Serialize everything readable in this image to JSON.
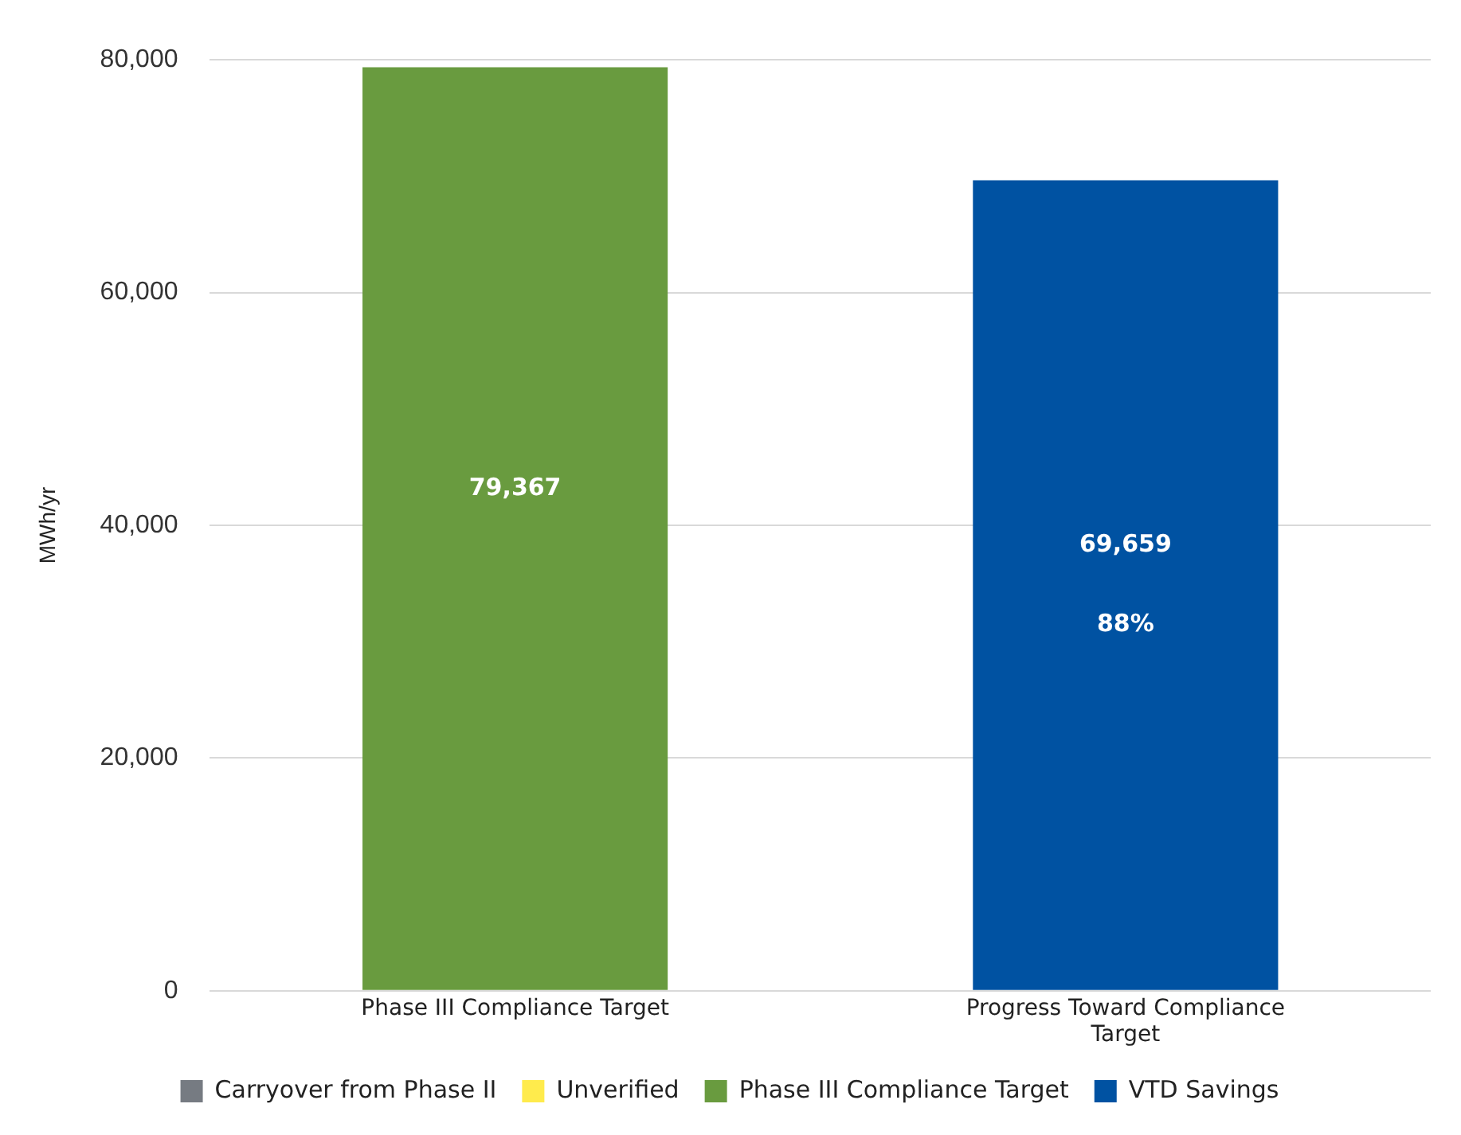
{
  "chart_data": {
    "type": "bar",
    "stacked": true,
    "ylabel": "MWh/yr",
    "categories": [
      "Phase III Compliance Target",
      "Progress Toward Compliance Target"
    ],
    "series": [
      {
        "name": "Carryover from Phase II",
        "color": "#767b82",
        "values": [
          null,
          null
        ]
      },
      {
        "name": "Unverified",
        "color": "#ffeb4c",
        "values": [
          null,
          null
        ]
      },
      {
        "name": "Phase III Compliance Target",
        "color": "#699b3f",
        "values": [
          79367,
          null
        ],
        "value_labels": [
          "79,367",
          null
        ]
      },
      {
        "name": "VTD Savings",
        "color": "#0052a2",
        "values": [
          null,
          69659
        ],
        "value_labels": [
          null,
          "69,659"
        ]
      }
    ],
    "annotations": [
      "88%"
    ],
    "ylim": [
      0,
      80000
    ],
    "yticks": [
      0,
      {
        "value": 20000,
        "label": "20,000"
      },
      {
        "value": 40000,
        "label": "40,000"
      },
      {
        "value": 60000,
        "label": "60,000"
      },
      {
        "value": 80000,
        "label": "80,000"
      }
    ],
    "grid": "y",
    "legend": "bottom"
  }
}
